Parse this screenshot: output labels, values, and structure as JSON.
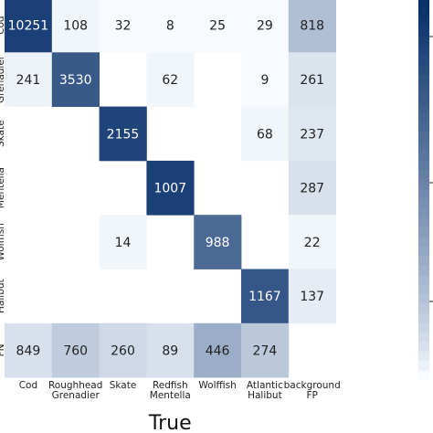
{
  "chart_data": {
    "type": "heatmap",
    "xlabel": "True",
    "ylabel": "",
    "x_categories": [
      [
        "Cod"
      ],
      [
        "Roughhead",
        "Grenadier"
      ],
      [
        "Skate"
      ],
      [
        "Redfish",
        "Mentella"
      ],
      [
        "Wolffish"
      ],
      [
        "Atlantic",
        "Halibut"
      ],
      [
        "background",
        "FP"
      ]
    ],
    "y_categories": [
      "Cod",
      "Grenadier",
      "Skate",
      "Mentella",
      "Wolffish",
      "Halibut",
      "FN"
    ],
    "matrix": [
      [
        10251,
        108,
        32,
        8,
        25,
        29,
        818
      ],
      [
        241,
        3530,
        null,
        62,
        null,
        9,
        261
      ],
      [
        null,
        null,
        2155,
        null,
        null,
        68,
        237
      ],
      [
        null,
        null,
        null,
        1007,
        null,
        null,
        287
      ],
      [
        null,
        null,
        14,
        null,
        988,
        null,
        22
      ],
      [
        null,
        null,
        null,
        null,
        null,
        1167,
        137
      ],
      [
        849,
        760,
        260,
        89,
        446,
        274,
        null
      ]
    ],
    "normalized": [
      [
        0.9,
        0.01,
        0.0,
        0.0,
        0.0,
        0.0,
        0.22
      ],
      [
        0.02,
        0.75,
        null,
        0.01,
        null,
        0.0,
        0.07
      ],
      [
        null,
        null,
        0.88,
        null,
        null,
        0.01,
        0.06
      ],
      [
        null,
        null,
        null,
        0.9,
        null,
        null,
        0.08
      ],
      [
        null,
        null,
        0.01,
        null,
        0.66,
        null,
        0.01
      ],
      [
        null,
        null,
        null,
        null,
        null,
        0.77,
        0.04
      ],
      [
        0.08,
        0.16,
        0.11,
        0.08,
        0.3,
        0.18,
        null
      ]
    ],
    "colormap": "Blues",
    "colors": {
      "low": "#f7fbff",
      "high": "#08306b",
      "text_light": "#ffffff",
      "text_dark": "#222222"
    },
    "grid": false,
    "colorbar": true
  }
}
